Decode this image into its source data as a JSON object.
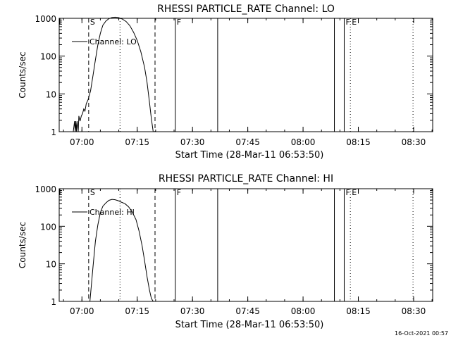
{
  "timestamp": "16-Oct-2021 00:57",
  "chart_data": [
    {
      "type": "line",
      "title": "RHESSI PARTICLE_RATE Channel: LO",
      "xlabel": "Start Time (28-Mar-11 06:53:50)",
      "ylabel": "Counts/sec",
      "yscale": "log",
      "ylim": [
        1,
        1000
      ],
      "xlim": [
        "06:53:50",
        "08:35:10"
      ],
      "xticks": [
        "07:00",
        "07:15",
        "07:30",
        "07:45",
        "08:00",
        "08:15",
        "08:30"
      ],
      "yticks": [
        "1",
        "10",
        "100",
        "1000"
      ],
      "legend": {
        "label": "Channel: LO",
        "placement": "top-left"
      },
      "markers": [
        {
          "label": "S",
          "time": "07:01:50",
          "style": "dashed"
        },
        {
          "label": "",
          "time": "07:10:20",
          "style": "dotted"
        },
        {
          "label": "",
          "time": "07:19:50",
          "style": "dashed"
        },
        {
          "label": "F",
          "time": "07:25:20",
          "style": "solid"
        },
        {
          "label": "",
          "time": "07:36:50",
          "style": "solid"
        },
        {
          "label": "",
          "time": "08:08:30",
          "style": "solid"
        },
        {
          "label": "F",
          "time": "08:11:10",
          "style": "solid"
        },
        {
          "label": "E",
          "time": "08:12:50",
          "style": "dotted"
        },
        {
          "label": "",
          "time": "08:29:50",
          "style": "dotted"
        }
      ],
      "series": [
        {
          "name": "Channel: LO",
          "x": [
            "06:57:40",
            "06:58:00",
            "06:58:10",
            "06:58:20",
            "06:58:30",
            "06:58:40",
            "06:59:00",
            "06:59:10",
            "06:59:30",
            "06:59:50",
            "07:00:10",
            "07:00:30",
            "07:00:50",
            "07:01:10",
            "07:01:40",
            "07:02:20",
            "07:03:00",
            "07:03:40",
            "07:04:20",
            "07:05:00",
            "07:05:40",
            "07:06:30",
            "07:07:20",
            "07:08:10",
            "07:09:00",
            "07:10:00",
            "07:11:00",
            "07:12:00",
            "07:13:00",
            "07:14:00",
            "07:15:00",
            "07:16:00",
            "07:17:00",
            "07:17:40",
            "07:18:20",
            "07:18:50",
            "07:19:20"
          ],
          "y": [
            1.0,
            1.9,
            1.0,
            1.9,
            1.0,
            1.9,
            1.0,
            2.6,
            1.9,
            2.6,
            3.0,
            4.0,
            3.5,
            5.5,
            7.0,
            12,
            30,
            80,
            200,
            400,
            650,
            850,
            980,
            1050,
            1070,
            1040,
            950,
            820,
            640,
            430,
            260,
            130,
            50,
            20,
            6,
            2.2,
            1.0
          ]
        }
      ]
    },
    {
      "type": "line",
      "title": "RHESSI PARTICLE_RATE Channel: HI",
      "xlabel": "Start Time (28-Mar-11 06:53:50)",
      "ylabel": "Counts/sec",
      "yscale": "log",
      "ylim": [
        1,
        1000
      ],
      "xlim": [
        "06:53:50",
        "08:35:10"
      ],
      "xticks": [
        "07:00",
        "07:15",
        "07:30",
        "07:45",
        "08:00",
        "08:15",
        "08:30"
      ],
      "yticks": [
        "1",
        "10",
        "100",
        "1000"
      ],
      "legend": {
        "label": "Channel: HI",
        "placement": "top-left"
      },
      "markers": [
        {
          "label": "S",
          "time": "07:01:50",
          "style": "dashed"
        },
        {
          "label": "",
          "time": "07:10:20",
          "style": "dotted"
        },
        {
          "label": "",
          "time": "07:19:50",
          "style": "dashed"
        },
        {
          "label": "F",
          "time": "07:25:20",
          "style": "solid"
        },
        {
          "label": "",
          "time": "07:36:50",
          "style": "solid"
        },
        {
          "label": "",
          "time": "08:08:30",
          "style": "solid"
        },
        {
          "label": "F",
          "time": "08:11:10",
          "style": "solid"
        },
        {
          "label": "E",
          "time": "08:12:50",
          "style": "dotted"
        },
        {
          "label": "",
          "time": "08:29:50",
          "style": "dotted"
        }
      ],
      "series": [
        {
          "name": "Channel: HI",
          "x": [
            "07:02:10",
            "07:03:00",
            "07:03:40",
            "07:04:20",
            "07:05:00",
            "07:05:40",
            "07:06:30",
            "07:07:20",
            "07:08:10",
            "07:09:00",
            "07:09:50",
            "07:10:40",
            "07:11:40",
            "07:12:40",
            "07:13:40",
            "07:14:40",
            "07:15:30",
            "07:16:20",
            "07:17:00",
            "07:17:40",
            "07:18:20",
            "07:18:50",
            "07:19:20"
          ],
          "y": [
            1.0,
            8,
            40,
            110,
            230,
            340,
            420,
            490,
            520,
            510,
            480,
            440,
            400,
            330,
            240,
            150,
            75,
            30,
            12,
            4.5,
            2.0,
            1.2,
            1.0
          ]
        }
      ]
    }
  ]
}
